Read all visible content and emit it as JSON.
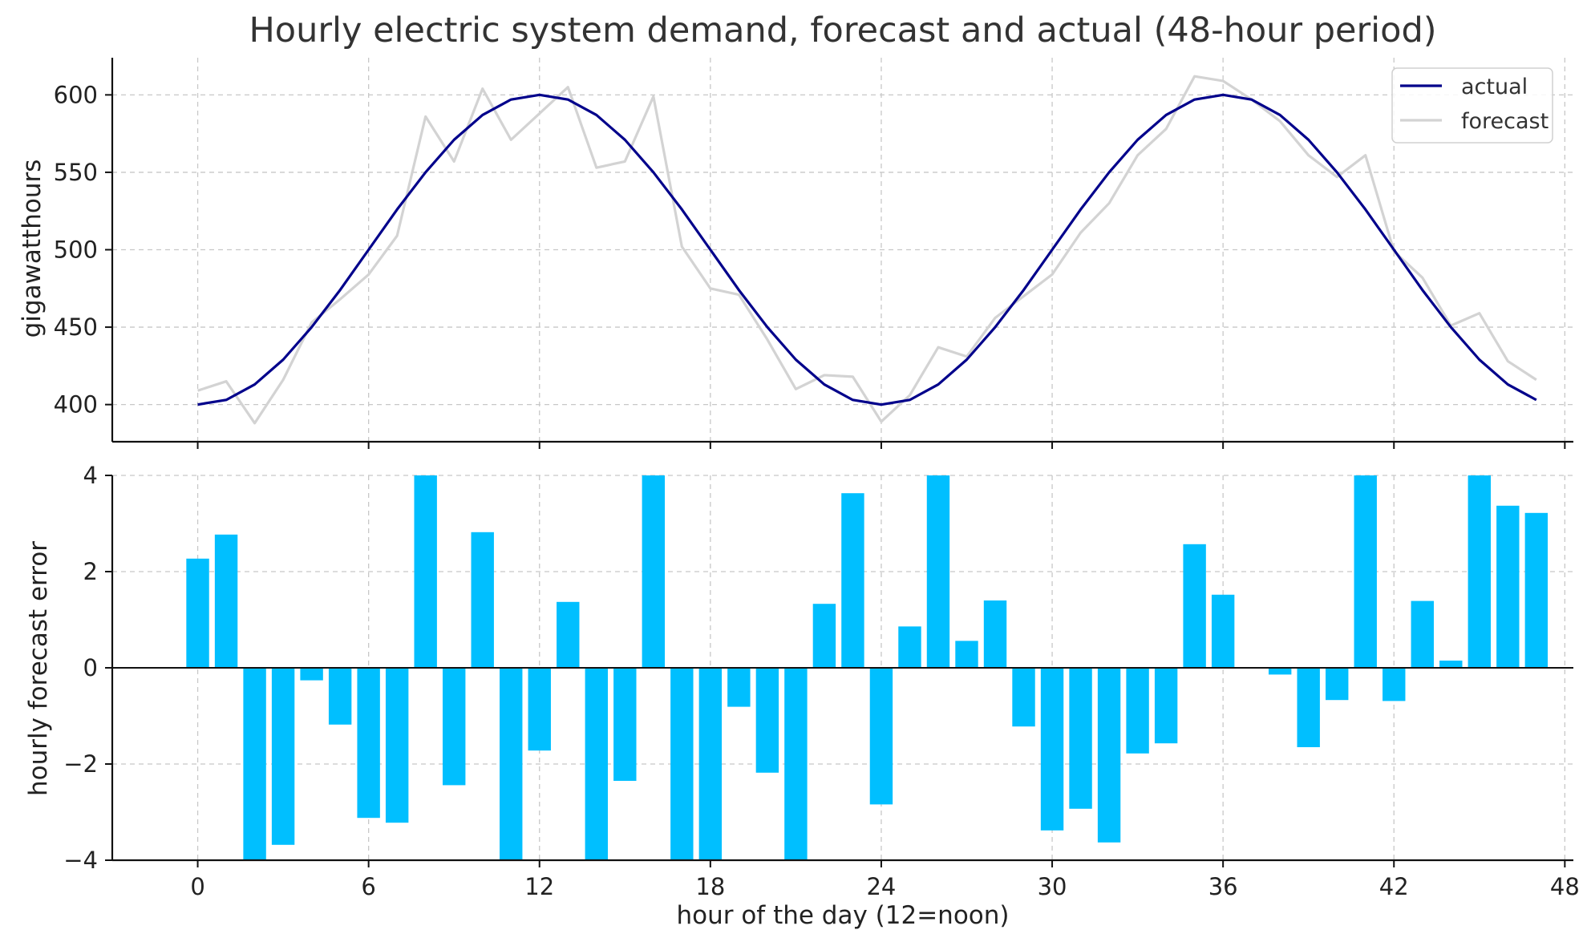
{
  "chart_data": {
    "title": "Hourly electric system demand, forecast and actual (48-hour period)",
    "xlabel": "hour of the day  (12=noon)",
    "xlim": [
      -3,
      48.3
    ],
    "xticks": [
      0,
      6,
      12,
      18,
      24,
      30,
      36,
      42,
      48
    ],
    "grid": true,
    "panels": [
      {
        "type": "line",
        "ylabel": "gigawatthours",
        "ylim": [
          376,
          624
        ],
        "yticks": [
          400,
          450,
          500,
          550,
          600
        ],
        "legend": {
          "placement": "top-right",
          "entries": [
            "actual",
            "forecast"
          ]
        },
        "x": [
          0,
          1,
          2,
          3,
          4,
          5,
          6,
          7,
          8,
          9,
          10,
          11,
          12,
          13,
          14,
          15,
          16,
          17,
          18,
          19,
          20,
          21,
          22,
          23,
          24,
          25,
          26,
          27,
          28,
          29,
          30,
          31,
          32,
          33,
          34,
          35,
          36,
          37,
          38,
          39,
          40,
          41,
          42,
          43,
          44,
          45,
          46,
          47
        ],
        "series": [
          {
            "name": "actual",
            "color": "#00008b",
            "values": [
              400,
              403,
              413,
              429,
              450,
              474,
              500,
              526,
              550,
              571,
              587,
              597,
              600,
              597,
              587,
              571,
              550,
              526,
              500,
              474,
              450,
              429,
              413,
              403,
              400,
              403,
              413,
              429,
              450,
              474,
              500,
              526,
              550,
              571,
              587,
              597,
              600,
              597,
              587,
              571,
              550,
              526,
              500,
              474,
              450,
              429,
              413,
              403
            ]
          },
          {
            "name": "forecast",
            "color": "#d3d3d3",
            "values": [
              409,
              415,
              388,
              416,
              453,
              468,
              484,
              509,
              586,
              557,
              604,
              571,
              588,
              605,
              553,
              557,
              599,
              502,
              475,
              471,
              442,
              410,
              419,
              418,
              389,
              406,
              437,
              431,
              456,
              470,
              484,
              511,
              530,
              561,
              578,
              612,
              609,
              597,
              583,
              561,
              547,
              561,
              499,
              482,
              451,
              459,
              428,
              416
            ]
          }
        ]
      },
      {
        "type": "bar",
        "ylabel": "hourly forecast error",
        "ylim": [
          -4,
          4
        ],
        "yticks": [
          4,
          2,
          0,
          -2,
          -4
        ],
        "ytick_labels": [
          "4",
          "2",
          "0",
          "−2",
          "−4"
        ],
        "zero_line": true,
        "color": "#00bfff",
        "x": [
          0,
          1,
          2,
          3,
          4,
          5,
          6,
          7,
          8,
          9,
          10,
          11,
          12,
          13,
          14,
          15,
          16,
          17,
          18,
          19,
          20,
          21,
          22,
          23,
          24,
          25,
          26,
          27,
          28,
          29,
          30,
          31,
          32,
          33,
          34,
          35,
          36,
          37,
          38,
          39,
          40,
          41,
          42,
          43,
          44,
          45,
          46,
          47
        ],
        "values": [
          2.27,
          2.77,
          -4.0,
          -3.68,
          -0.26,
          -1.18,
          -3.12,
          -3.22,
          4.0,
          -2.44,
          2.82,
          -4.0,
          -1.72,
          1.37,
          -4.0,
          -2.35,
          4.0,
          -4.0,
          -4.0,
          -0.81,
          -2.18,
          -4.0,
          1.33,
          3.63,
          -2.84,
          0.86,
          4.0,
          0.56,
          1.4,
          -1.22,
          -3.38,
          -2.93,
          -3.63,
          -1.78,
          -1.57,
          2.57,
          1.52,
          0.0,
          -0.14,
          -1.65,
          -0.67,
          4.0,
          -0.69,
          1.39,
          0.15,
          4.0,
          3.37,
          3.22
        ]
      }
    ]
  }
}
